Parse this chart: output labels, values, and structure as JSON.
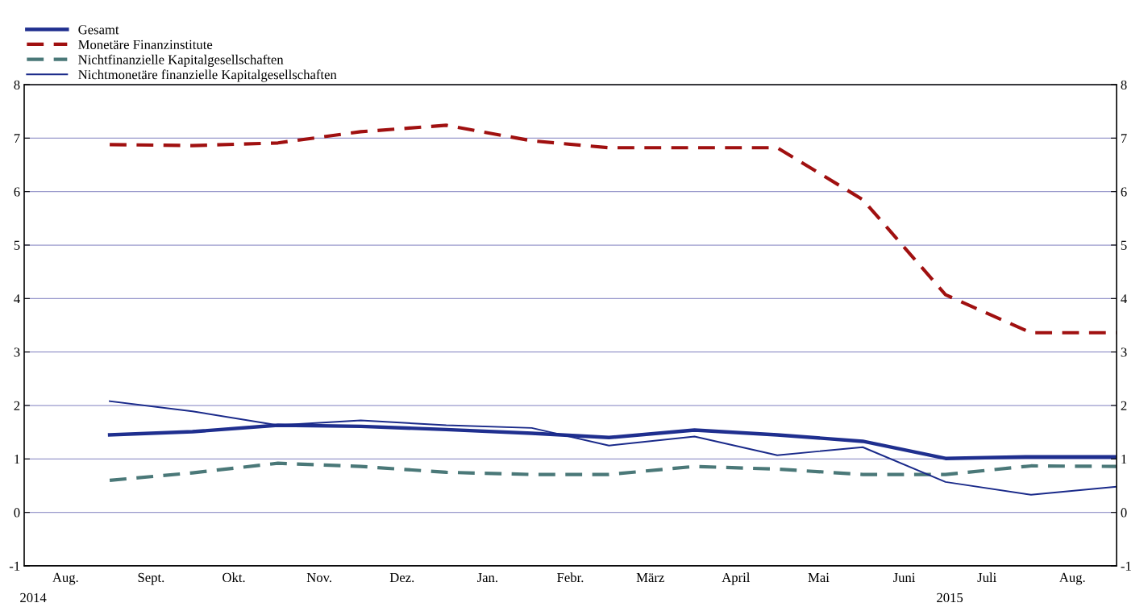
{
  "chart_data": {
    "type": "line",
    "x": [
      "2014-09",
      "2014-10",
      "2014-11",
      "2014-12",
      "2015-01",
      "2015-02",
      "2015-03",
      "2015-04",
      "2015-05",
      "2015-06",
      "2015-07",
      "2015-08",
      "2015-09"
    ],
    "series": [
      {
        "name": "Gesamt",
        "color": "#1f2f8f",
        "line_style": "solid",
        "values": [
          1.45,
          1.51,
          1.63,
          1.61,
          1.55,
          1.48,
          1.4,
          1.54,
          1.45,
          1.33,
          1.01,
          1.04,
          1.04
        ]
      },
      {
        "name": "Monetäre Finanzinstitute",
        "color": "#a01010",
        "line_style": "dashed",
        "values": [
          6.88,
          6.86,
          6.91,
          7.12,
          7.24,
          6.95,
          6.82,
          6.82,
          6.82,
          5.85,
          4.07,
          3.36,
          3.36
        ]
      },
      {
        "name": "Nichtfinanzielle Kapitalgesellschaften",
        "color": "#4a7878",
        "line_style": "dashed",
        "values": [
          0.6,
          0.74,
          0.92,
          0.86,
          0.75,
          0.71,
          0.71,
          0.86,
          0.81,
          0.71,
          0.71,
          0.87,
          0.86
        ]
      },
      {
        "name": "Nichtmonetäre finanzielle Kapitalgesellschaften",
        "color": "#1a2a8a",
        "line_style": "solid",
        "values": [
          2.08,
          1.89,
          1.63,
          1.72,
          1.63,
          1.58,
          1.25,
          1.42,
          1.07,
          1.22,
          0.57,
          0.33,
          0.48
        ]
      }
    ],
    "xlim": [
      "2014-08",
      "2015-09"
    ],
    "xticks": [
      {
        "value": "2014-08-16",
        "label": "Aug."
      },
      {
        "value": "2014-09-16",
        "label": "Sept."
      },
      {
        "value": "2014-10-16",
        "label": "Okt."
      },
      {
        "value": "2014-11-16",
        "label": "Nov."
      },
      {
        "value": "2014-12-16",
        "label": "Dez."
      },
      {
        "value": "2015-01-16",
        "label": "Jan."
      },
      {
        "value": "2015-02-15",
        "label": "Febr."
      },
      {
        "value": "2015-03-16",
        "label": "März"
      },
      {
        "value": "2015-04-16",
        "label": "April"
      },
      {
        "value": "2015-05-16",
        "label": "Mai"
      },
      {
        "value": "2015-06-16",
        "label": "Juni"
      },
      {
        "value": "2015-07-16",
        "label": "Juli"
      },
      {
        "value": "2015-08-16",
        "label": "Aug."
      }
    ],
    "ylim": [
      -1,
      8
    ],
    "yticks": [
      -1,
      0,
      1,
      2,
      3,
      4,
      5,
      6,
      7,
      8
    ],
    "y2lim": [
      -1,
      8
    ],
    "y2ticks": [
      -1,
      0,
      1,
      2,
      3,
      4,
      5,
      6,
      7,
      8
    ],
    "grid": "y",
    "legend": "top left",
    "marker": "none",
    "annotations": [
      "2014",
      "2015"
    ]
  }
}
